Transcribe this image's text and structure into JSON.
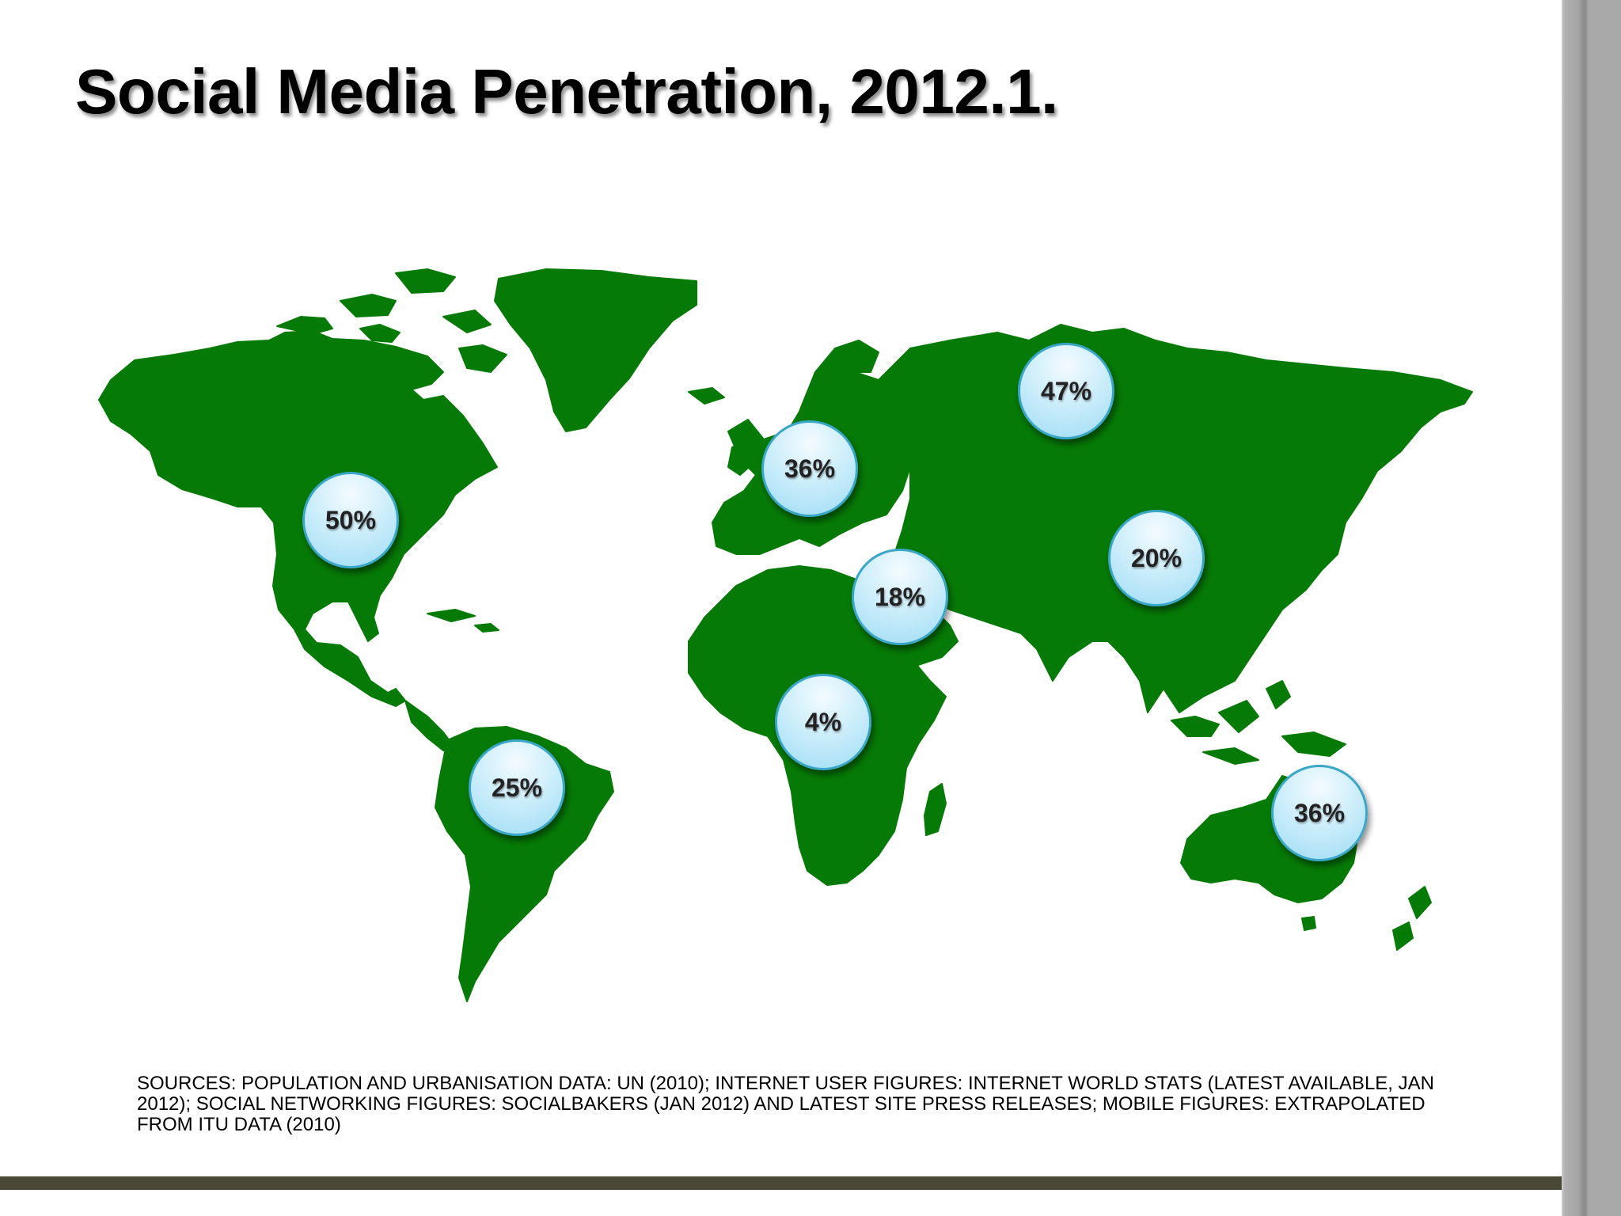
{
  "slide": {
    "title": "Social Media Penetration, 2012.1.",
    "sources": "SOURCES: POPULATION AND URBANISATION DATA: UN (2010); INTERNET USER FIGURES: INTERNET WORLD STATS (LATEST AVAILABLE, JAN 2012); SOCIAL NETWORKING FIGURES: SOCIALBAKERS (JAN 2012) AND LATEST SITE PRESS RELEASES; MOBILE FIGURES: EXTRAPOLATED FROM ITU DATA (2010)"
  },
  "colors": {
    "land": "#067a06",
    "bubble_border": "#3aa7c9",
    "bubble_fill": "#cdeefb",
    "bottom_rule": "#4a4837"
  },
  "map": {
    "regions": [
      {
        "id": "north-america",
        "value": "50%"
      },
      {
        "id": "south-america",
        "value": "25%"
      },
      {
        "id": "europe",
        "value": "36%"
      },
      {
        "id": "russia-central-asia",
        "value": "47%"
      },
      {
        "id": "middle-east",
        "value": "18%"
      },
      {
        "id": "africa",
        "value": "4%"
      },
      {
        "id": "east-asia",
        "value": "20%"
      },
      {
        "id": "oceania",
        "value": "36%"
      }
    ]
  }
}
